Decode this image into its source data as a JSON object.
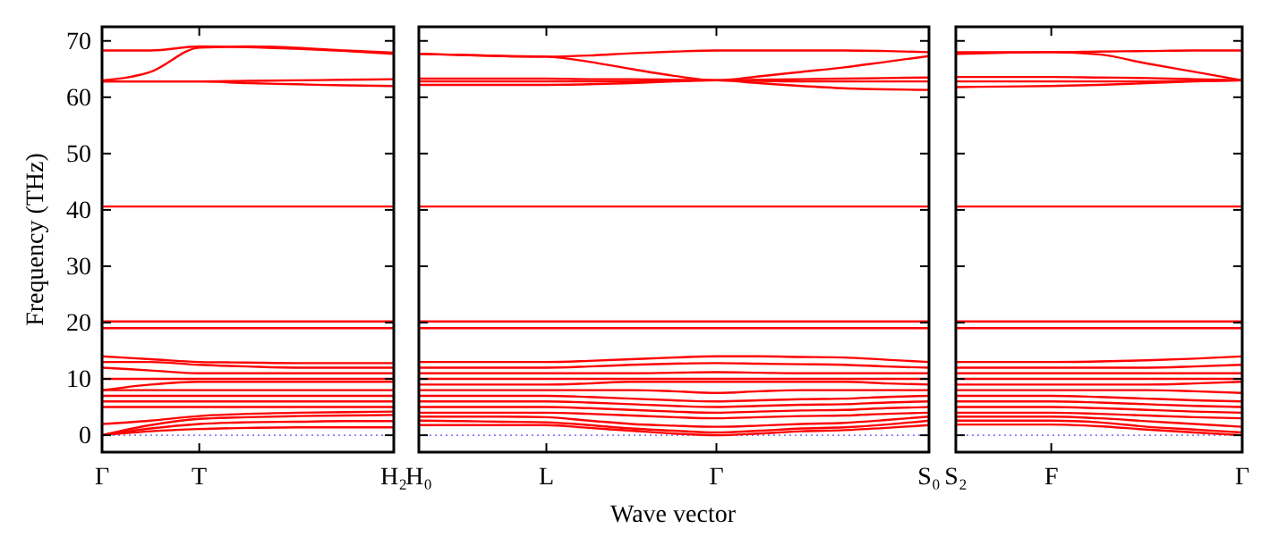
{
  "chart_data": [
    {
      "type": "line",
      "ylabel": "Frequency (THz)",
      "categories": [
        "Γ",
        null,
        "T",
        null,
        null,
        null,
        "H₂"
      ],
      "ylim": [
        -3,
        72.5
      ],
      "yticks": [
        0,
        10,
        20,
        30,
        40,
        50,
        60,
        70
      ],
      "grid": false,
      "ref_lines": [
        {
          "axis": "y",
          "value": 0,
          "label": null,
          "color": "#8080ff",
          "line_style": "dotted"
        }
      ],
      "series": [
        {
          "color": "#ff0000",
          "values": [
            68.3,
            68.3,
            69.0,
            68.9,
            68.6,
            68.2,
            67.7
          ]
        },
        {
          "color": "#ff0000",
          "values": [
            63.0,
            64.5,
            68.8,
            69.0,
            68.8,
            68.3,
            67.9
          ]
        },
        {
          "color": "#ff0000",
          "values": [
            62.8,
            62.8,
            62.8,
            62.9,
            63.0,
            63.1,
            63.2
          ]
        },
        {
          "color": "#ff0000",
          "values": [
            62.8,
            62.8,
            62.8,
            62.5,
            62.3,
            62.1,
            62.0
          ]
        },
        {
          "color": "#ff0000",
          "values": [
            40.6,
            40.6,
            40.6,
            40.6,
            40.6,
            40.6,
            40.6
          ]
        },
        {
          "color": "#ff0000",
          "values": [
            20.2,
            20.2,
            20.2,
            20.2,
            20.2,
            20.2,
            20.2
          ]
        },
        {
          "color": "#ff0000",
          "values": [
            19.0,
            19.0,
            19.0,
            19.0,
            19.0,
            19.0,
            19.0
          ]
        },
        {
          "color": "#ff0000",
          "values": [
            14,
            13.5,
            13,
            12.9,
            12.8,
            12.8,
            12.8
          ]
        },
        {
          "color": "#ff0000",
          "values": [
            13,
            13,
            12.5,
            12.2,
            12,
            12,
            12
          ]
        },
        {
          "color": "#ff0000",
          "values": [
            12,
            11.5,
            11,
            11,
            11,
            11,
            11
          ]
        },
        {
          "color": "#ff0000",
          "values": [
            10,
            10,
            10,
            10,
            10,
            10,
            10
          ]
        },
        {
          "color": "#ff0000",
          "values": [
            8,
            9,
            9.5,
            9.5,
            9.5,
            9.5,
            9.5
          ]
        },
        {
          "color": "#ff0000",
          "values": [
            8,
            8,
            8,
            8,
            8,
            8,
            8
          ]
        },
        {
          "color": "#ff0000",
          "values": [
            7,
            7,
            7,
            7,
            7,
            7,
            7
          ]
        },
        {
          "color": "#ff0000",
          "values": [
            6,
            6,
            6,
            6,
            6,
            6,
            6
          ]
        },
        {
          "color": "#ff0000",
          "values": [
            5,
            5,
            5,
            5,
            5,
            5,
            5
          ]
        },
        {
          "color": "#ff0000",
          "values": [
            2,
            2.6,
            3.4,
            3.8,
            4,
            4.1,
            4.2
          ]
        },
        {
          "color": "#ff0000",
          "values": [
            0,
            1.8,
            2.9,
            3.2,
            3.4,
            3.5,
            3.6
          ]
        },
        {
          "color": "#ff0000",
          "values": [
            0,
            1.2,
            2,
            2.3,
            2.4,
            2.5,
            2.5
          ]
        },
        {
          "color": "#ff0000",
          "values": [
            0,
            0.7,
            1.1,
            1.3,
            1.4,
            1.4,
            1.4
          ]
        }
      ]
    },
    {
      "type": "line",
      "xlabel": "Wave vector",
      "categories": [
        "H₀",
        null,
        null,
        "L",
        null,
        null,
        null,
        "Γ",
        null,
        null,
        null,
        null,
        "S₀"
      ],
      "ylim": [
        -3,
        72.5
      ],
      "yticks": [
        0,
        10,
        20,
        30,
        40,
        50,
        60,
        70
      ],
      "tick_labels": "x",
      "grid": false,
      "ref_lines": [
        {
          "axis": "y",
          "value": 0,
          "label": null,
          "color": "#8080ff",
          "line_style": "dotted"
        }
      ],
      "series": [
        {
          "color": "#ff0000",
          "values": [
            67.7,
            67.5,
            67.3,
            67.2,
            67.4,
            67.8,
            68.1,
            68.3,
            68.3,
            68.3,
            68.3,
            68.2,
            68.0
          ]
        },
        {
          "color": "#ff0000",
          "values": [
            67.7,
            67.5,
            67.3,
            67.2,
            66.3,
            65,
            63.8,
            63,
            63.7,
            64.5,
            65.3,
            66.3,
            67.3
          ]
        },
        {
          "color": "#ff0000",
          "values": [
            63.3,
            63.3,
            63.3,
            63.3,
            63.2,
            63.2,
            63.1,
            63,
            63.1,
            63.2,
            63.3,
            63.4,
            63.5
          ]
        },
        {
          "color": "#ff0000",
          "values": [
            62.8,
            62.8,
            62.8,
            62.8,
            62.8,
            62.8,
            62.9,
            63,
            62.9,
            62.8,
            62.8,
            62.8,
            62.8
          ]
        },
        {
          "color": "#ff0000",
          "values": [
            62.2,
            62.2,
            62.2,
            62.2,
            62.3,
            62.5,
            62.8,
            63,
            62.5,
            62,
            61.6,
            61.4,
            61.3
          ]
        },
        {
          "color": "#ff0000",
          "values": [
            40.6,
            40.6,
            40.6,
            40.6,
            40.6,
            40.6,
            40.6,
            40.6,
            40.6,
            40.6,
            40.6,
            40.6,
            40.6
          ]
        },
        {
          "color": "#ff0000",
          "values": [
            20.2,
            20.2,
            20.2,
            20.2,
            20.2,
            20.2,
            20.2,
            20.2,
            20.2,
            20.2,
            20.2,
            20.2,
            20.2
          ]
        },
        {
          "color": "#ff0000",
          "values": [
            19.0,
            19.0,
            19.0,
            19.0,
            19.0,
            19.0,
            19.0,
            19.0,
            19.0,
            19.0,
            19.0,
            19.0,
            19.0
          ]
        },
        {
          "color": "#ff0000",
          "values": [
            13,
            13,
            13,
            13,
            13.2,
            13.5,
            13.8,
            14,
            14,
            13.9,
            13.8,
            13.4,
            13
          ]
        },
        {
          "color": "#ff0000",
          "values": [
            12,
            12,
            12,
            12,
            12.2,
            12.5,
            12.7,
            12.8,
            12.7,
            12.6,
            12.5,
            12.2,
            12
          ]
        },
        {
          "color": "#ff0000",
          "values": [
            11,
            11,
            11,
            11,
            11,
            11,
            11.1,
            11.2,
            11.1,
            11,
            11,
            11,
            11
          ]
        },
        {
          "color": "#ff0000",
          "values": [
            10,
            10,
            10,
            10,
            10,
            10,
            10,
            10,
            10,
            10,
            10,
            10,
            10
          ]
        },
        {
          "color": "#ff0000",
          "values": [
            9,
            9,
            9,
            9,
            9.2,
            9.5,
            9.5,
            9.5,
            9.5,
            9.5,
            9.5,
            9.2,
            9
          ]
        },
        {
          "color": "#ff0000",
          "values": [
            8,
            8,
            8,
            8,
            8,
            8,
            7.8,
            7.5,
            7.8,
            8,
            8,
            8,
            8
          ]
        },
        {
          "color": "#ff0000",
          "values": [
            7,
            7,
            7,
            7,
            6.8,
            6.5,
            6.2,
            6,
            6.2,
            6.4,
            6.5,
            6.8,
            7
          ]
        },
        {
          "color": "#ff0000",
          "values": [
            6,
            6,
            6,
            6,
            5.8,
            5.5,
            5.2,
            5,
            5.2,
            5.4,
            5.5,
            5.8,
            6
          ]
        },
        {
          "color": "#ff0000",
          "values": [
            5,
            5,
            5,
            5,
            4.8,
            4.5,
            4.2,
            4,
            4.2,
            4.4,
            4.5,
            4.8,
            5
          ]
        },
        {
          "color": "#ff0000",
          "values": [
            4,
            4,
            4,
            4,
            3.8,
            3.5,
            3.2,
            3,
            3.2,
            3.4,
            3.5,
            3.8,
            4
          ]
        },
        {
          "color": "#ff0000",
          "values": [
            3.3,
            3.3,
            3.3,
            3.2,
            2.6,
            2,
            1.7,
            1.5,
            1.7,
            2,
            2.2,
            2.7,
            3.3
          ]
        },
        {
          "color": "#ff0000",
          "values": [
            2.6,
            2.5,
            2.4,
            2.3,
            1.8,
            1.2,
            0.8,
            0.5,
            0.8,
            1.2,
            1.4,
            1.9,
            2.6
          ]
        },
        {
          "color": "#ff0000",
          "values": [
            1.8,
            1.8,
            1.8,
            1.8,
            1.3,
            0.8,
            0.3,
            0,
            0.3,
            0.7,
            0.9,
            1.3,
            1.8
          ]
        }
      ]
    },
    {
      "type": "line",
      "categories": [
        "S₂",
        null,
        "F",
        null,
        null,
        null,
        "Γ"
      ],
      "ylim": [
        -3,
        72.5
      ],
      "yticks": [
        0,
        10,
        20,
        30,
        40,
        50,
        60,
        70
      ],
      "tick_labels": "x",
      "grid": false,
      "ref_lines": [
        {
          "axis": "y",
          "value": 0,
          "label": null,
          "color": "#8080ff",
          "line_style": "dotted"
        }
      ],
      "series": [
        {
          "color": "#ff0000",
          "values": [
            67.7,
            67.9,
            68,
            67.6,
            66,
            64.5,
            63
          ]
        },
        {
          "color": "#ff0000",
          "values": [
            68,
            68,
            68,
            68.1,
            68.2,
            68.3,
            68.3
          ]
        },
        {
          "color": "#ff0000",
          "values": [
            63.6,
            63.6,
            63.6,
            63.5,
            63.4,
            63.2,
            63
          ]
        },
        {
          "color": "#ff0000",
          "values": [
            62.8,
            62.8,
            62.8,
            62.8,
            62.8,
            62.9,
            63
          ]
        },
        {
          "color": "#ff0000",
          "values": [
            61.8,
            61.9,
            62,
            62.2,
            62.5,
            62.8,
            63
          ]
        },
        {
          "color": "#ff0000",
          "values": [
            40.6,
            40.6,
            40.6,
            40.6,
            40.6,
            40.6,
            40.6
          ]
        },
        {
          "color": "#ff0000",
          "values": [
            20.2,
            20.2,
            20.2,
            20.2,
            20.2,
            20.2,
            20.2
          ]
        },
        {
          "color": "#ff0000",
          "values": [
            19.0,
            19.0,
            19.0,
            19.0,
            19.0,
            19.0,
            19.0
          ]
        },
        {
          "color": "#ff0000",
          "values": [
            13,
            13,
            13,
            13.1,
            13.3,
            13.6,
            14
          ]
        },
        {
          "color": "#ff0000",
          "values": [
            12,
            12,
            12,
            12,
            12,
            12.2,
            12.5
          ]
        },
        {
          "color": "#ff0000",
          "values": [
            11,
            11,
            11,
            11,
            11,
            11,
            11
          ]
        },
        {
          "color": "#ff0000",
          "values": [
            10,
            10,
            10,
            10,
            10,
            10,
            10
          ]
        },
        {
          "color": "#ff0000",
          "values": [
            9,
            9,
            9,
            9,
            9,
            9.2,
            9.5
          ]
        },
        {
          "color": "#ff0000",
          "values": [
            8,
            8,
            8,
            8,
            8,
            7.8,
            7.5
          ]
        },
        {
          "color": "#ff0000",
          "values": [
            7,
            7,
            7,
            6.8,
            6.5,
            6.2,
            6
          ]
        },
        {
          "color": "#ff0000",
          "values": [
            6,
            6,
            6,
            5.8,
            5.5,
            5.2,
            5
          ]
        },
        {
          "color": "#ff0000",
          "values": [
            5,
            5,
            5,
            4.8,
            4.5,
            4.2,
            4
          ]
        },
        {
          "color": "#ff0000",
          "values": [
            4,
            4,
            4,
            3.8,
            3.5,
            3.2,
            3
          ]
        },
        {
          "color": "#ff0000",
          "values": [
            3.3,
            3.3,
            3.3,
            3,
            2.5,
            2,
            1.5
          ]
        },
        {
          "color": "#ff0000",
          "values": [
            2.6,
            2.6,
            2.6,
            2.3,
            1.5,
            1,
            0.5
          ]
        },
        {
          "color": "#ff0000",
          "values": [
            1.9,
            1.9,
            1.9,
            1.6,
            1,
            0.5,
            0
          ]
        }
      ]
    }
  ]
}
